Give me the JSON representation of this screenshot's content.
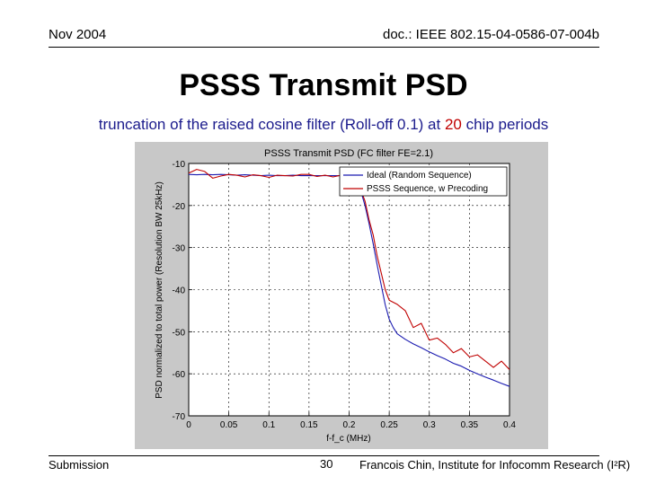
{
  "header": {
    "date": "Nov 2004",
    "doc_id": "doc.: IEEE 802.15-04-0586-07-004b"
  },
  "slide": {
    "title": "PSSS Transmit PSD",
    "subtitle_pre": "truncation of the raised cosine filter (Roll-off 0.1) at ",
    "subtitle_highlight": "20",
    "subtitle_post": " chip periods"
  },
  "footer": {
    "left": "Submission",
    "page": "30",
    "right": "Francois Chin, Institute for Infocomm Research (I²R)"
  },
  "colors": {
    "series_ideal": "#1a1ab0",
    "series_psss": "#c00000",
    "subtitle": "#1b1b8c"
  },
  "chart_data": {
    "type": "line",
    "title": "PSSS Transmit PSD (FC filter FE=2.1)",
    "xlabel": "f-f_c (MHz)",
    "ylabel": "PSD normalized to total power (Resolution BW 25kHz)",
    "xlim": [
      0,
      0.4
    ],
    "ylim": [
      -70,
      -10
    ],
    "xticks": [
      0,
      0.05,
      0.1,
      0.15,
      0.2,
      0.25,
      0.3,
      0.35,
      0.4
    ],
    "xtick_labels": [
      "0",
      "0.05",
      "0.1",
      "0.15",
      "0.2",
      "0.25",
      "0.3",
      "0.35",
      "0.4"
    ],
    "yticks": [
      -10,
      -20,
      -30,
      -40,
      -50,
      -60,
      -70
    ],
    "ytick_labels": [
      "-10",
      "-20",
      "-30",
      "-40",
      "-50",
      "-60",
      "-70"
    ],
    "grid": true,
    "legend_position": "top-right",
    "series": [
      {
        "name": "Ideal (Random Sequence)",
        "x": [
          0,
          0.01,
          0.02,
          0.03,
          0.04,
          0.05,
          0.06,
          0.07,
          0.08,
          0.09,
          0.1,
          0.11,
          0.12,
          0.13,
          0.14,
          0.15,
          0.16,
          0.17,
          0.18,
          0.19,
          0.2,
          0.205,
          0.21,
          0.215,
          0.22,
          0.225,
          0.23,
          0.235,
          0.24,
          0.245,
          0.25,
          0.255,
          0.26,
          0.27,
          0.28,
          0.29,
          0.3,
          0.31,
          0.32,
          0.33,
          0.34,
          0.35,
          0.36,
          0.37,
          0.38,
          0.39,
          0.4
        ],
        "y": [
          -12.6,
          -12.7,
          -12.6,
          -12.7,
          -12.6,
          -12.7,
          -12.8,
          -12.7,
          -12.8,
          -12.9,
          -12.8,
          -12.9,
          -12.9,
          -12.8,
          -12.9,
          -12.9,
          -12.9,
          -12.9,
          -12.9,
          -12.9,
          -12.9,
          -13.3,
          -14.6,
          -16.8,
          -20.1,
          -24.4,
          -29.1,
          -34.1,
          -38.9,
          -43.6,
          -47.0,
          -49.0,
          -50.5,
          -51.8,
          -52.9,
          -53.8,
          -54.8,
          -55.7,
          -56.5,
          -57.5,
          -58.2,
          -59.2,
          -60.0,
          -60.8,
          -61.5,
          -62.3,
          -63.0
        ]
      },
      {
        "name": "PSSS Sequence, w Precoding",
        "x": [
          0,
          0.01,
          0.02,
          0.03,
          0.04,
          0.05,
          0.06,
          0.07,
          0.08,
          0.09,
          0.1,
          0.11,
          0.12,
          0.13,
          0.14,
          0.15,
          0.16,
          0.17,
          0.18,
          0.19,
          0.2,
          0.205,
          0.21,
          0.215,
          0.22,
          0.225,
          0.23,
          0.235,
          0.24,
          0.245,
          0.25,
          0.26,
          0.27,
          0.28,
          0.29,
          0.3,
          0.31,
          0.32,
          0.33,
          0.34,
          0.35,
          0.36,
          0.37,
          0.38,
          0.39,
          0.4
        ],
        "y": [
          -12.3,
          -11.4,
          -11.9,
          -13.5,
          -13.0,
          -12.6,
          -12.8,
          -13.2,
          -12.7,
          -12.9,
          -13.3,
          -12.8,
          -12.9,
          -13.0,
          -12.6,
          -12.6,
          -13.1,
          -12.8,
          -13.2,
          -12.8,
          -12.5,
          -12.9,
          -14.1,
          -16.5,
          -19.0,
          -23.5,
          -27.0,
          -32.0,
          -36.0,
          -40.0,
          -42.5,
          -43.5,
          -45.0,
          -49.0,
          -48.0,
          -52.0,
          -51.5,
          -53.0,
          -55.0,
          -54.0,
          -56.0,
          -55.5,
          -57.0,
          -58.5,
          -57.0,
          -59.0
        ]
      }
    ]
  }
}
